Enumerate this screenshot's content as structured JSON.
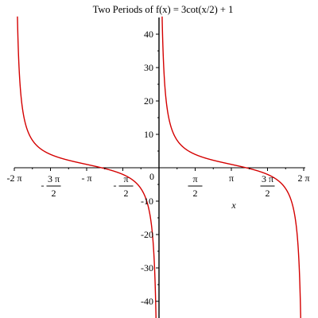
{
  "chart_data": {
    "type": "line",
    "title": "Two Periods of f(x) = 3cot(x/2) + 1",
    "function": "3cot(x/2) + 1",
    "xlabel": "x",
    "ylabel": "",
    "xlim": [
      -6.2832,
      6.2832
    ],
    "ylim": [
      -45,
      45
    ],
    "grid": false,
    "line_color": "#d40000",
    "y_ticks": [
      {
        "value": -40,
        "label": "-40"
      },
      {
        "value": -30,
        "label": "-30"
      },
      {
        "value": -20,
        "label": "-20"
      },
      {
        "value": -10,
        "label": "-10"
      },
      {
        "value": 10,
        "label": "10"
      },
      {
        "value": 20,
        "label": "20"
      },
      {
        "value": 30,
        "label": "30"
      },
      {
        "value": 40,
        "label": "40"
      }
    ],
    "x_ticks": [
      {
        "value": -6.2832,
        "label": "-2 π"
      },
      {
        "value": -4.7124,
        "label": "- 3 π / 2"
      },
      {
        "value": -3.1416,
        "label": "- π"
      },
      {
        "value": -1.5708,
        "label": "- π / 2"
      },
      {
        "value": 1.5708,
        "label": "π / 2"
      },
      {
        "value": 3.1416,
        "label": "π"
      },
      {
        "value": 4.7124,
        "label": "3 π / 2"
      },
      {
        "value": 6.2832,
        "label": "2 π"
      }
    ],
    "origin_label": "0",
    "series": [
      {
        "name": "f(x) = 3cot(x/2) + 1",
        "x": [
          -6.26,
          -6.2,
          -6.0,
          -5.5,
          -5.0,
          -4.5,
          -4.0,
          -3.5,
          -3.0,
          -2.5,
          -2.0,
          -1.5,
          -1.0,
          -0.5,
          -0.2,
          -0.07
        ],
        "y": [
          129.4,
          36.7,
          11.54,
          4.7,
          2.83,
          1.85,
          1.18,
          0.65,
          1.21,
          -0.26,
          -0.87,
          -1.94,
          -4.49,
          -10.95,
          -28.97,
          -84.7
        ]
      },
      {
        "name": "f(x) = 3cot(x/2) + 1",
        "x": [
          0.07,
          0.2,
          0.5,
          1.0,
          1.5,
          2.0,
          2.5,
          3.0,
          3.5,
          4.0,
          4.5,
          5.0,
          5.5,
          6.0,
          6.2,
          6.26
        ],
        "y": [
          86.7,
          30.97,
          12.95,
          6.49,
          3.94,
          2.93,
          2.26,
          1.21,
          0.82,
          0.35,
          -0.07,
          -0.83,
          -2.7,
          -9.54,
          -34.7,
          -127.4
        ]
      }
    ],
    "asymptotes_x": [
      0
    ]
  }
}
